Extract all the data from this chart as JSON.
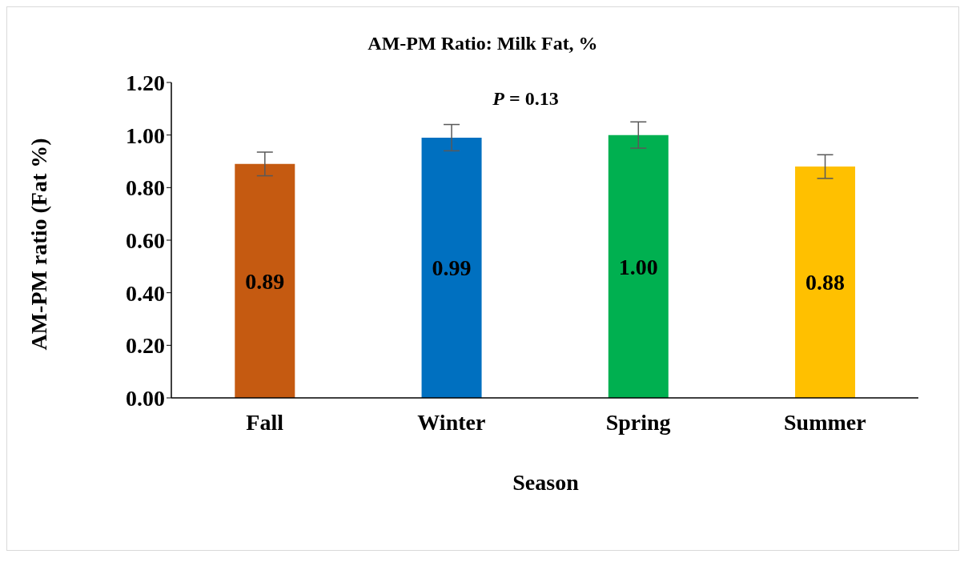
{
  "chart_data": {
    "type": "bar",
    "title": "AM-PM Ratio: Milk Fat, %",
    "xlabel": "Season",
    "ylabel": "AM-PM ratio (Fat %)",
    "categories": [
      "Fall",
      "Winter",
      "Spring",
      "Summer"
    ],
    "values": [
      0.89,
      0.99,
      1.0,
      0.88
    ],
    "colors": [
      "#c55a11",
      "#0070c0",
      "#00b050",
      "#ffc000"
    ],
    "errors": [
      0.045,
      0.05,
      0.05,
      0.045
    ],
    "value_labels": [
      "0.89",
      "0.99",
      "1.00",
      "0.88"
    ],
    "annotations": [
      "P = 0.13"
    ],
    "ylim": [
      0,
      1.2
    ],
    "yticks": [
      {
        "value": 0,
        "label": "0.00"
      },
      {
        "value": 0.2,
        "label": "0.20"
      },
      {
        "value": 0.4,
        "label": "0.40"
      },
      {
        "value": 0.6,
        "label": "0.60"
      },
      {
        "value": 0.8,
        "label": "0.80"
      },
      {
        "value": 1.0,
        "label": "1.00"
      },
      {
        "value": 1.2,
        "label": "1.20"
      }
    ],
    "grid": false
  }
}
